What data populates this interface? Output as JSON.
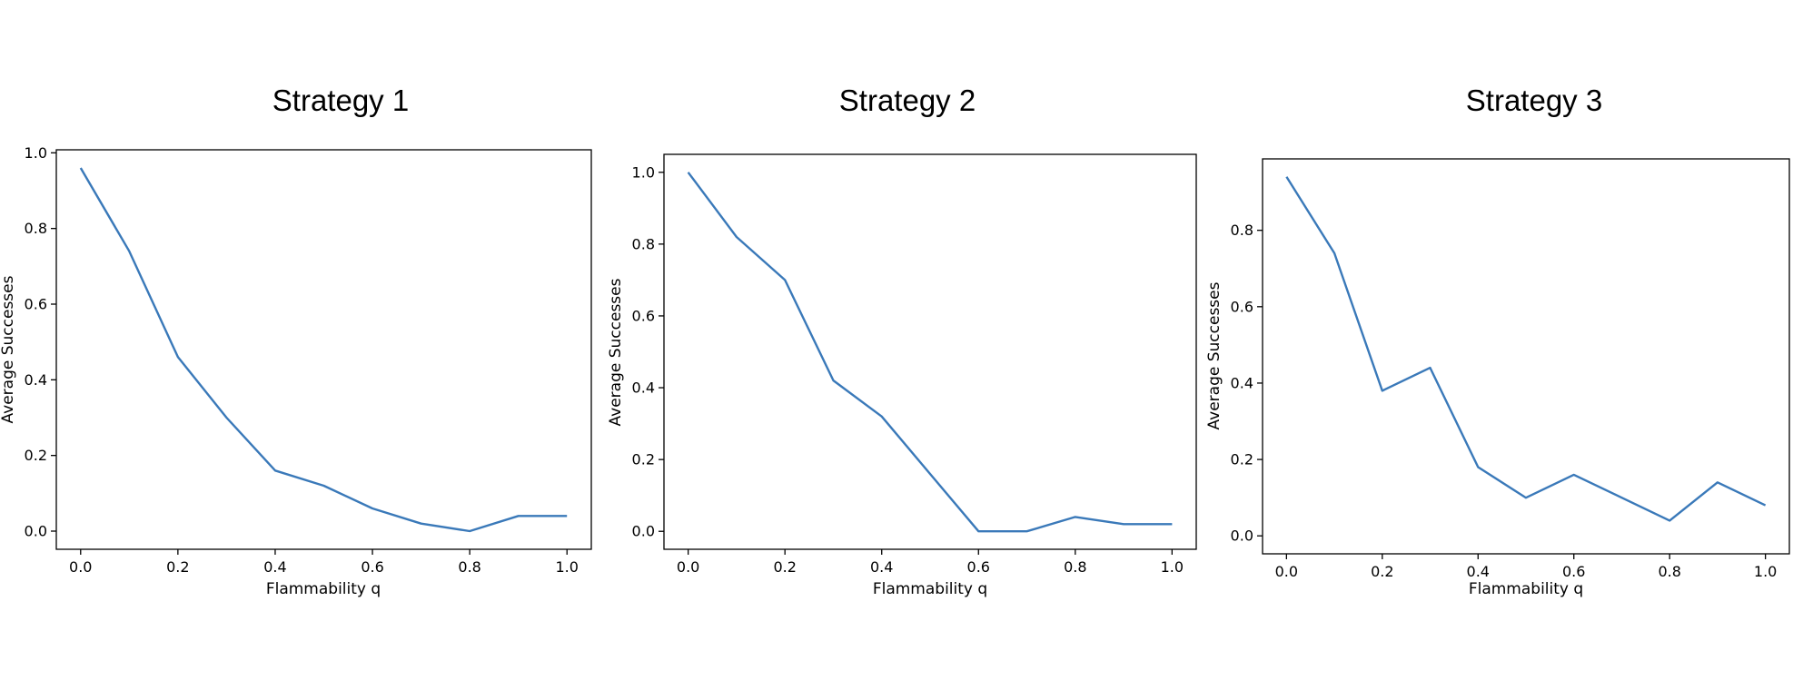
{
  "colors": {
    "line": "#3a79b9",
    "axis": "#000000",
    "background": "#ffffff"
  },
  "chart_data": [
    {
      "type": "line",
      "title": "Strategy 1",
      "xlabel": "Flammability q",
      "ylabel": "Average Successes",
      "xlim": [
        -0.05,
        1.05
      ],
      "ylim": [
        -0.048,
        1.008
      ],
      "xticks": [
        "0.0",
        "0.2",
        "0.4",
        "0.6",
        "0.8",
        "1.0"
      ],
      "yticks": [
        "0.0",
        "0.2",
        "0.4",
        "0.6",
        "0.8",
        "1.0"
      ],
      "grid": false,
      "x": [
        0.0,
        0.1,
        0.2,
        0.3,
        0.4,
        0.5,
        0.6,
        0.7,
        0.8,
        0.9,
        1.0
      ],
      "series": [
        {
          "values": [
            0.96,
            0.74,
            0.46,
            0.3,
            0.16,
            0.12,
            0.06,
            0.02,
            0.0,
            0.04,
            0.04
          ]
        }
      ]
    },
    {
      "type": "line",
      "title": "Strategy 2",
      "xlabel": "Flammability q",
      "ylabel": "Average Successes",
      "xlim": [
        -0.05,
        1.05
      ],
      "ylim": [
        -0.05,
        1.05
      ],
      "xticks": [
        "0.0",
        "0.2",
        "0.4",
        "0.6",
        "0.8",
        "1.0"
      ],
      "yticks": [
        "0.0",
        "0.2",
        "0.4",
        "0.6",
        "0.8",
        "1.0"
      ],
      "grid": false,
      "x": [
        0.0,
        0.1,
        0.2,
        0.3,
        0.4,
        0.5,
        0.6,
        0.7,
        0.8,
        0.9,
        1.0
      ],
      "series": [
        {
          "values": [
            1.0,
            0.82,
            0.7,
            0.42,
            0.32,
            0.16,
            0.0,
            0.0,
            0.04,
            0.02,
            0.02
          ]
        }
      ]
    },
    {
      "type": "line",
      "title": "Strategy 3",
      "xlabel": "Flammability q",
      "ylabel": "Average Successes",
      "xlim": [
        -0.05,
        1.05
      ],
      "ylim": [
        -0.047,
        0.987
      ],
      "xticks": [
        "0.0",
        "0.2",
        "0.4",
        "0.6",
        "0.8",
        "1.0"
      ],
      "yticks": [
        "0.0",
        "0.2",
        "0.4",
        "0.6",
        "0.8"
      ],
      "grid": false,
      "x": [
        0.0,
        0.1,
        0.2,
        0.3,
        0.4,
        0.5,
        0.6,
        0.7,
        0.8,
        0.9,
        1.0
      ],
      "series": [
        {
          "values": [
            0.94,
            0.74,
            0.38,
            0.44,
            0.18,
            0.1,
            0.16,
            0.1,
            0.04,
            0.14,
            0.08
          ]
        }
      ]
    }
  ]
}
